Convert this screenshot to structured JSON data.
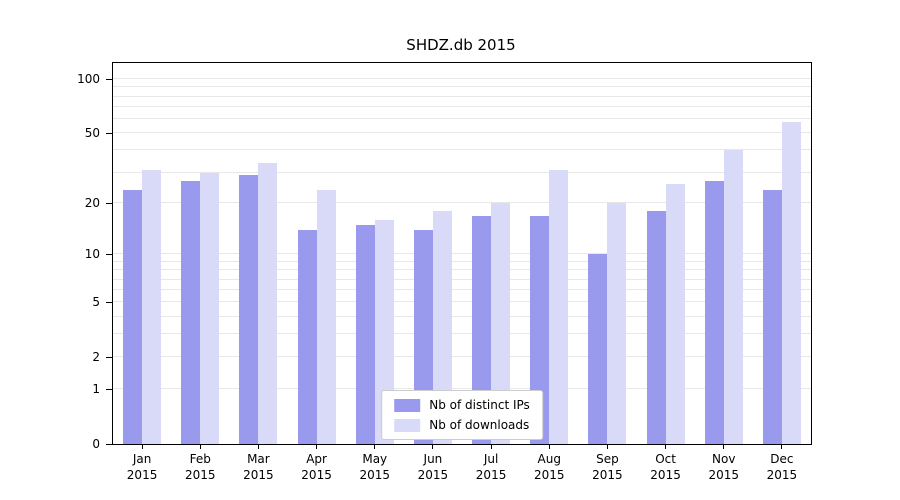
{
  "chart_data": {
    "type": "bar",
    "title": "SHDZ.db 2015",
    "categories": [
      "Jan",
      "Feb",
      "Mar",
      "Apr",
      "May",
      "Jun",
      "Jul",
      "Aug",
      "Sep",
      "Oct",
      "Nov",
      "Dec"
    ],
    "category_year": "2015",
    "series": [
      {
        "name": "Nb of distinct IPs",
        "color": "#9999ee",
        "values": [
          24,
          27,
          29,
          14,
          15,
          14,
          17,
          17,
          10,
          18,
          27,
          24
        ]
      },
      {
        "name": "Nb of downloads",
        "color": "#d9d9f8",
        "values": [
          31,
          30,
          34,
          24,
          16,
          18,
          20,
          31,
          20,
          26,
          40,
          58
        ]
      }
    ],
    "yticks": [
      0,
      1,
      2,
      5,
      10,
      20,
      50,
      100
    ],
    "ylim": [
      0,
      123
    ],
    "yscale": "log1p",
    "grid": true,
    "legend_position": "lower center",
    "colors": {
      "grid": "#e8e8e8",
      "axis": "#000000",
      "background": "#ffffff",
      "legend_border": "#cccccc"
    }
  }
}
